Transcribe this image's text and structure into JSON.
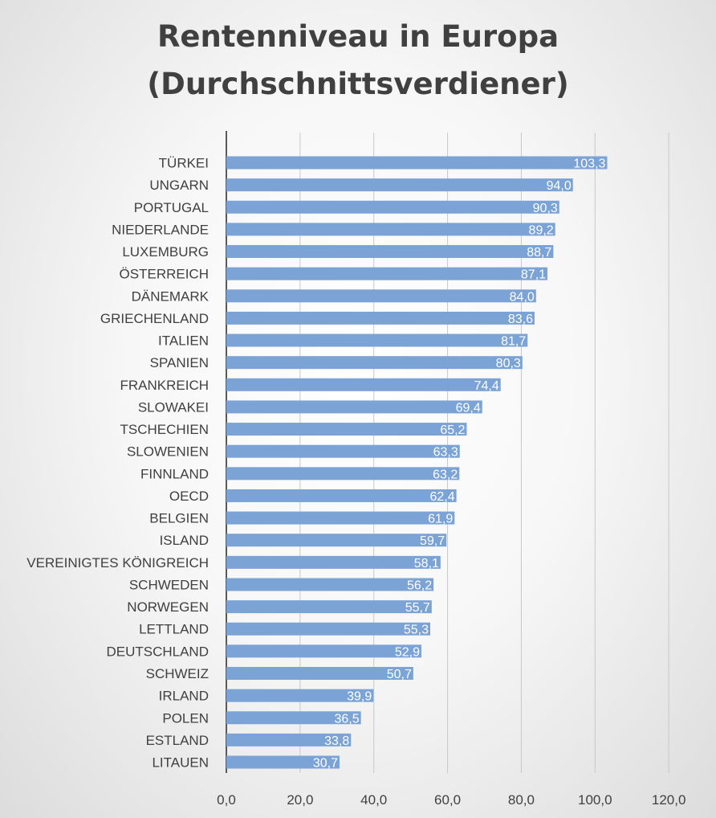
{
  "chart_data": {
    "type": "bar",
    "orientation": "horizontal",
    "title": "Rentenniveau in Europa",
    "subtitle": "(Durchschnittsverdiener)",
    "xlim": [
      0,
      120
    ],
    "xticks": [
      "0,0",
      "20,0",
      "40,0",
      "60,0",
      "80,0",
      "100,0",
      "120,0"
    ],
    "grid": true,
    "legend": "none",
    "bar_color": "#7ca3d6",
    "categories": [
      "TÜRKEI",
      "UNGARN",
      "PORTUGAL",
      "NIEDERLANDE",
      "LUXEMBURG",
      "ÖSTERREICH",
      "DÄNEMARK",
      "GRIECHENLAND",
      "ITALIEN",
      "SPANIEN",
      "FRANKREICH",
      "SLOWAKEI",
      "TSCHECHIEN",
      "SLOWENIEN",
      "FINNLAND",
      "OECD",
      "BELGIEN",
      "ISLAND",
      "VEREINIGTES KÖNIGREICH",
      "SCHWEDEN",
      "NORWEGEN",
      "LETTLAND",
      "DEUTSCHLAND",
      "SCHWEIZ",
      "IRLAND",
      "POLEN",
      "ESTLAND",
      "LITAUEN"
    ],
    "values": [
      103.3,
      94.0,
      90.3,
      89.2,
      88.7,
      87.1,
      84.0,
      83.6,
      81.7,
      80.3,
      74.4,
      69.4,
      65.2,
      63.3,
      63.2,
      62.4,
      61.9,
      59.7,
      58.1,
      56.2,
      55.7,
      55.3,
      52.9,
      50.7,
      39.9,
      36.5,
      33.8,
      30.7
    ],
    "value_labels": [
      "103,3",
      "94,0",
      "90,3",
      "89,2",
      "88,7",
      "87,1",
      "84,0",
      "83,6",
      "81,7",
      "80,3",
      "74,4",
      "69,4",
      "65,2",
      "63,3",
      "63,2",
      "62,4",
      "61,9",
      "59,7",
      "58,1",
      "56,2",
      "55,7",
      "55,3",
      "52,9",
      "50,7",
      "39,9",
      "36,5",
      "33,8",
      "30,7"
    ]
  }
}
